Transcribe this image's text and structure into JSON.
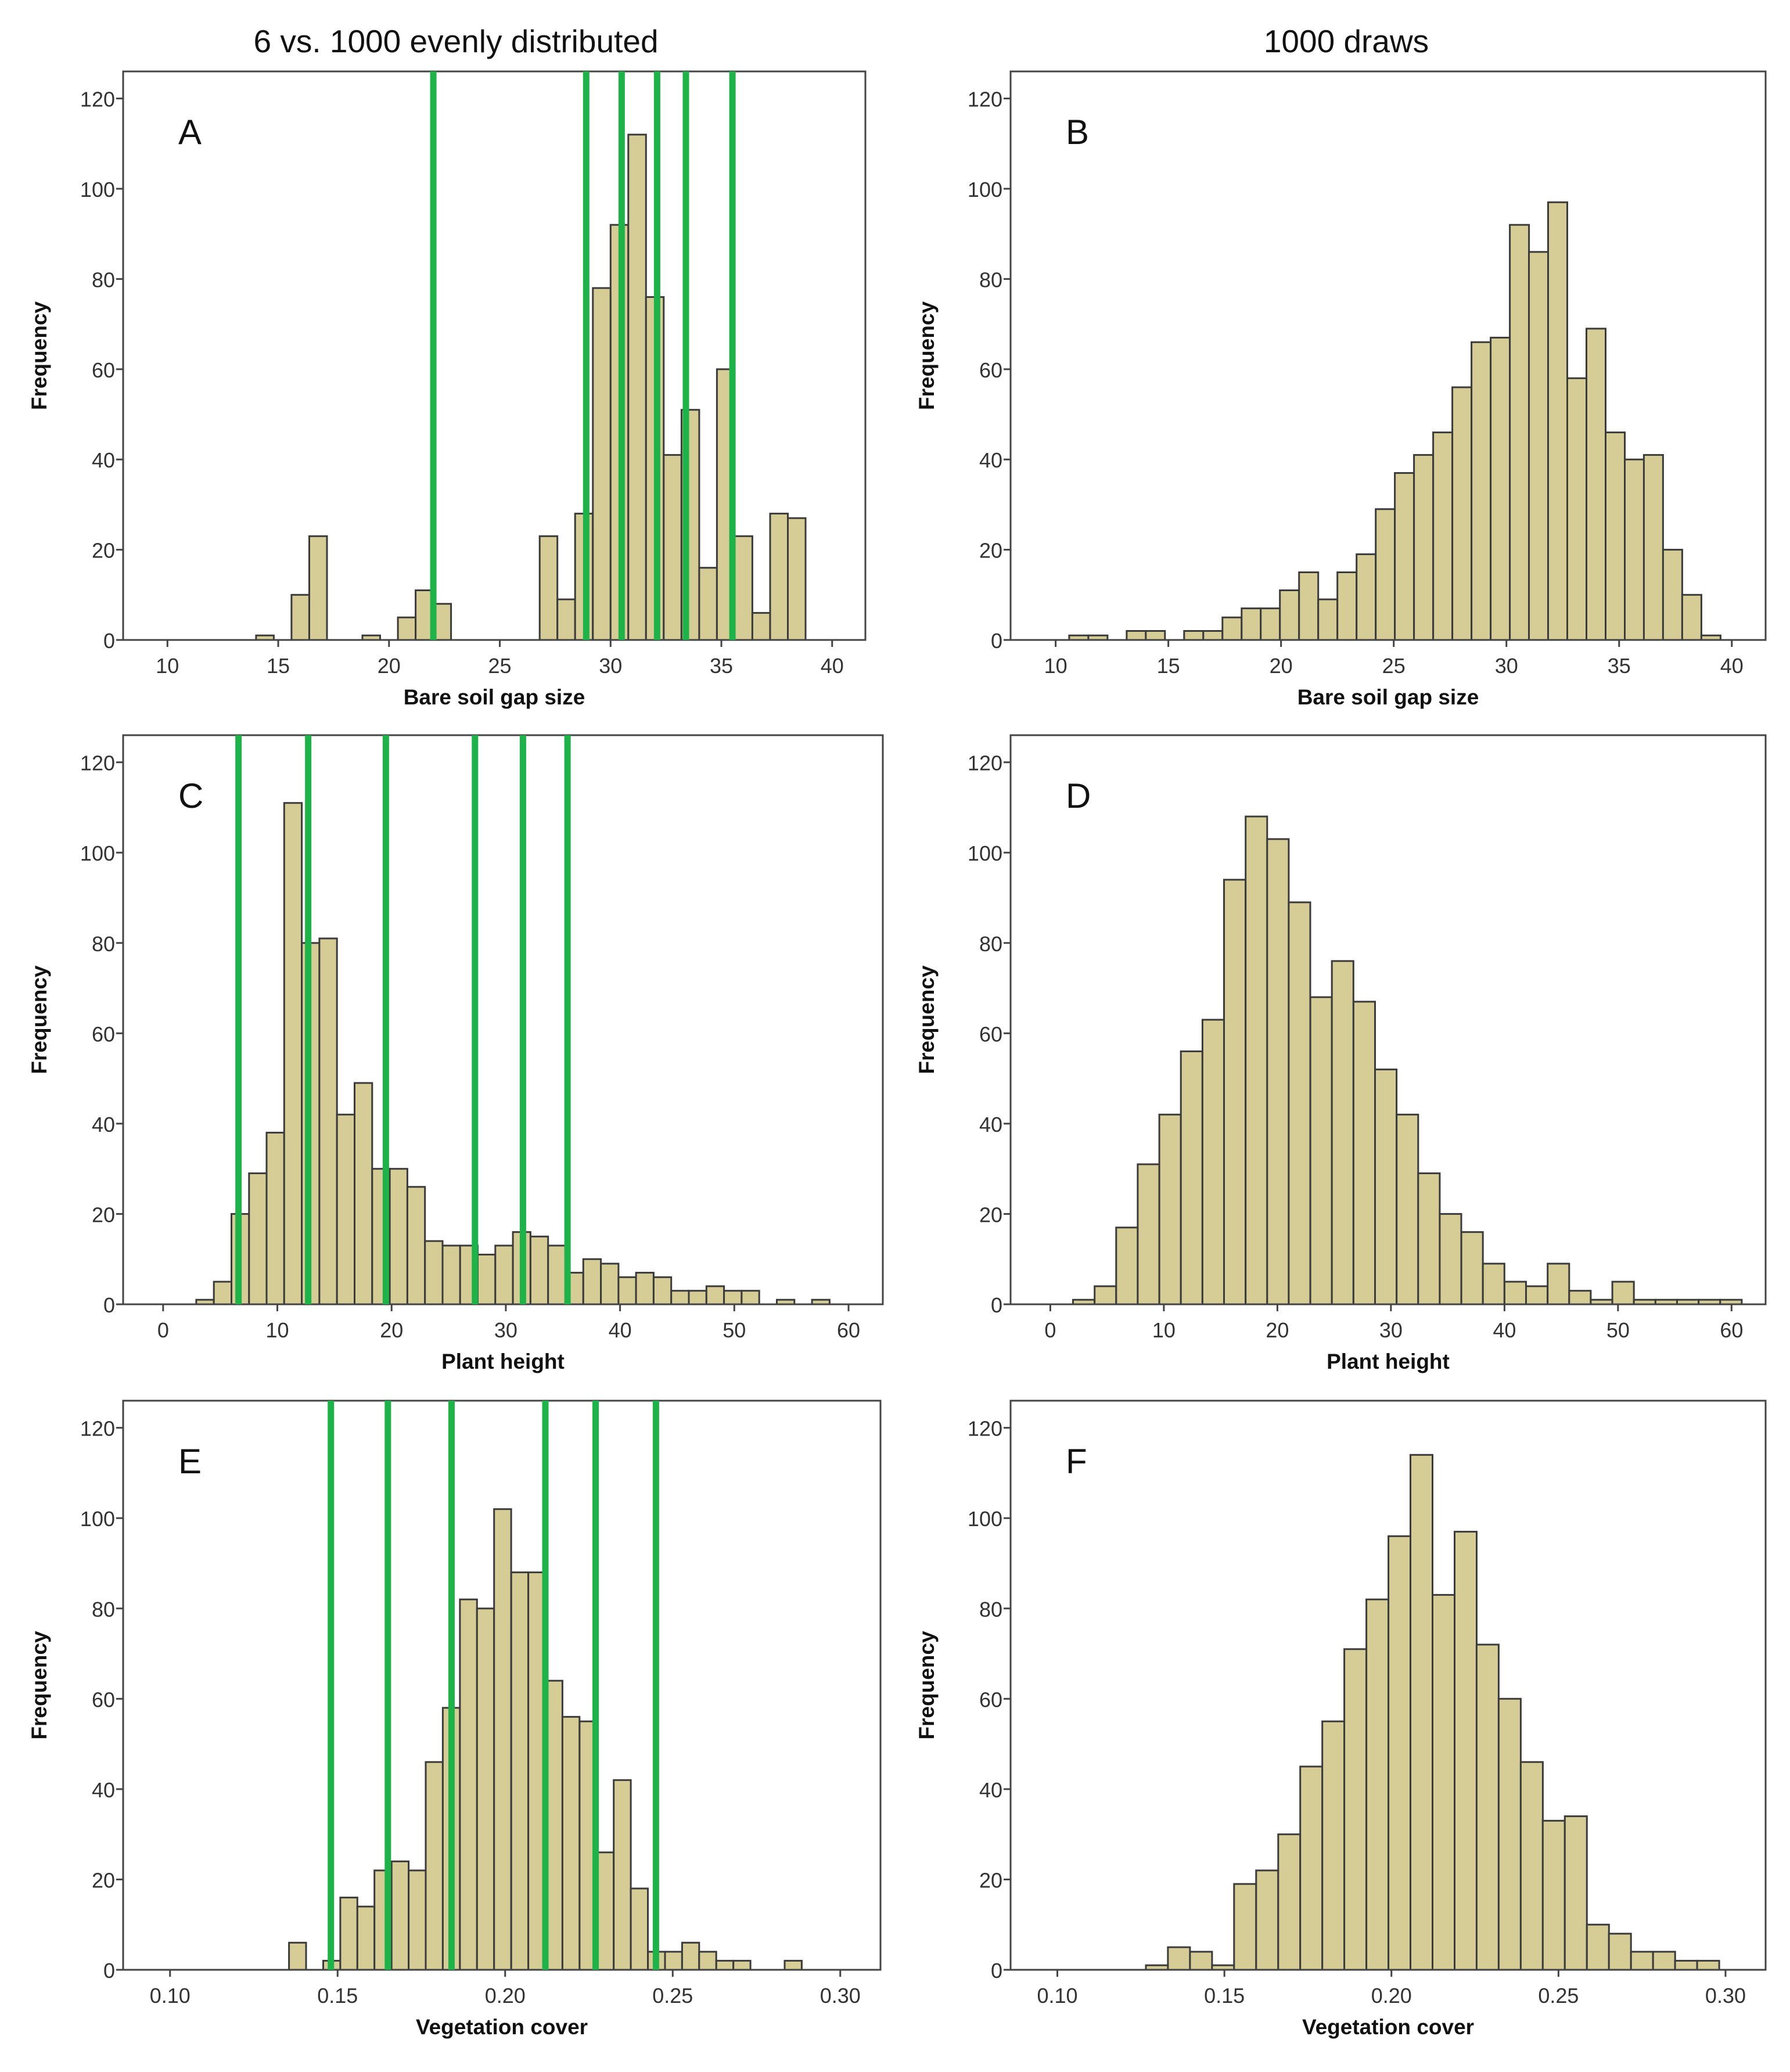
{
  "figure": {
    "column_titles": [
      "6 vs. 1000 evenly distributed",
      "1000 draws"
    ]
  },
  "colors": {
    "bar_fill": "#d5cc96",
    "bar_stroke": "#3b3b3b",
    "marker_line": "#1db348",
    "frame": "#444444",
    "text": "#111111"
  },
  "chart_data": [
    {
      "id": "A",
      "type": "bar",
      "panel_label": "A",
      "xlabel": "Bare soil gap size",
      "ylabel": "Frequency",
      "xlim": [
        8,
        41.5
      ],
      "ylim": [
        0,
        126
      ],
      "xticks": [
        10,
        15,
        20,
        25,
        30,
        35,
        40
      ],
      "xtick_labels": [
        "10",
        "15",
        "20",
        "25",
        "30",
        "35",
        "40"
      ],
      "yticks": [
        0,
        20,
        40,
        60,
        80,
        100,
        120
      ],
      "bin_start": 14,
      "bin_width": 0.8,
      "values": [
        1,
        0,
        10,
        23,
        0,
        0,
        1,
        0,
        5,
        11,
        8,
        0,
        0,
        0,
        0,
        0,
        23,
        9,
        28,
        78,
        92,
        112,
        76,
        41,
        51,
        16,
        60,
        23,
        6,
        28,
        27
      ],
      "markers": [
        22.0,
        28.9,
        30.5,
        32.1,
        33.4,
        35.5
      ]
    },
    {
      "id": "B",
      "type": "bar",
      "panel_label": "B",
      "xlabel": "Bare soil gap size",
      "ylabel": "Frequency",
      "xlim": [
        8,
        41.5
      ],
      "ylim": [
        0,
        126
      ],
      "xticks": [
        10,
        15,
        20,
        25,
        30,
        35,
        40
      ],
      "xtick_labels": [
        "10",
        "15",
        "20",
        "25",
        "30",
        "35",
        "40"
      ],
      "yticks": [
        0,
        20,
        40,
        60,
        80,
        100,
        120
      ],
      "bin_start": 10.6,
      "bin_width": 0.85,
      "values": [
        1,
        1,
        0,
        2,
        2,
        0,
        2,
        2,
        5,
        7,
        7,
        11,
        15,
        9,
        15,
        19,
        29,
        37,
        41,
        46,
        56,
        66,
        67,
        92,
        86,
        97,
        58,
        69,
        46,
        40,
        41,
        20,
        10,
        1
      ],
      "markers": []
    },
    {
      "id": "C",
      "type": "bar",
      "panel_label": "C",
      "xlabel": "Plant height",
      "ylabel": "Frequency",
      "xlim": [
        -3.5,
        63
      ],
      "ylim": [
        0,
        126
      ],
      "xticks": [
        0,
        10,
        20,
        30,
        40,
        50,
        60
      ],
      "xtick_labels": [
        "0",
        "10",
        "20",
        "30",
        "40",
        "50",
        "60"
      ],
      "yticks": [
        0,
        20,
        40,
        60,
        80,
        100,
        120
      ],
      "bin_start": 2.9,
      "bin_width": 1.54,
      "values": [
        1,
        5,
        20,
        29,
        38,
        111,
        80,
        81,
        42,
        49,
        30,
        30,
        26,
        14,
        13,
        13,
        11,
        13,
        16,
        15,
        13,
        7,
        10,
        9,
        6,
        7,
        6,
        3,
        3,
        4,
        3,
        3,
        0,
        1,
        0,
        1
      ],
      "markers": [
        6.6,
        12.7,
        19.5,
        27.3,
        31.5,
        35.4
      ]
    },
    {
      "id": "D",
      "type": "bar",
      "panel_label": "D",
      "xlabel": "Plant height",
      "ylabel": "Frequency",
      "xlim": [
        -3.5,
        63
      ],
      "ylim": [
        0,
        126
      ],
      "xticks": [
        0,
        10,
        20,
        30,
        40,
        50,
        60
      ],
      "xtick_labels": [
        "0",
        "10",
        "20",
        "30",
        "40",
        "50",
        "60"
      ],
      "yticks": [
        0,
        20,
        40,
        60,
        80,
        100,
        120
      ],
      "bin_start": 2.0,
      "bin_width": 1.9,
      "values": [
        1,
        4,
        17,
        31,
        42,
        56,
        63,
        94,
        108,
        103,
        89,
        68,
        76,
        67,
        52,
        42,
        29,
        20,
        16,
        9,
        5,
        4,
        9,
        3,
        1,
        5,
        1,
        1,
        1,
        1,
        1
      ],
      "markers": []
    },
    {
      "id": "E",
      "type": "bar",
      "panel_label": "E",
      "xlabel": "Vegetation cover",
      "ylabel": "Frequency",
      "xlim": [
        0.086,
        0.312
      ],
      "ylim": [
        0,
        126
      ],
      "xticks": [
        0.1,
        0.15,
        0.2,
        0.25,
        0.3
      ],
      "xtick_labels": [
        "0.10",
        "0.15",
        "0.20",
        "0.25",
        "0.30"
      ],
      "yticks": [
        0,
        20,
        40,
        60,
        80,
        100,
        120
      ],
      "bin_start": 0.1355,
      "bin_width": 0.0051,
      "values": [
        6,
        0,
        2,
        16,
        14,
        22,
        24,
        22,
        46,
        58,
        82,
        80,
        102,
        88,
        88,
        64,
        56,
        55,
        26,
        42,
        18,
        4,
        4,
        6,
        4,
        2,
        2,
        0,
        0,
        2
      ],
      "markers": [
        0.148,
        0.165,
        0.184,
        0.212,
        0.227,
        0.245
      ]
    },
    {
      "id": "F",
      "type": "bar",
      "panel_label": "F",
      "xlabel": "Vegetation cover",
      "ylabel": "Frequency",
      "xlim": [
        0.086,
        0.312
      ],
      "ylim": [
        0,
        126
      ],
      "xticks": [
        0.1,
        0.15,
        0.2,
        0.25,
        0.3
      ],
      "xtick_labels": [
        "0.10",
        "0.15",
        "0.20",
        "0.25",
        "0.30"
      ],
      "yticks": [
        0,
        20,
        40,
        60,
        80,
        100,
        120
      ],
      "bin_start": 0.1265,
      "bin_width": 0.0066,
      "values": [
        1,
        5,
        4,
        1,
        19,
        22,
        30,
        45,
        55,
        71,
        82,
        96,
        114,
        83,
        97,
        72,
        60,
        46,
        33,
        34,
        10,
        8,
        4,
        4,
        2,
        2
      ],
      "markers": []
    }
  ]
}
